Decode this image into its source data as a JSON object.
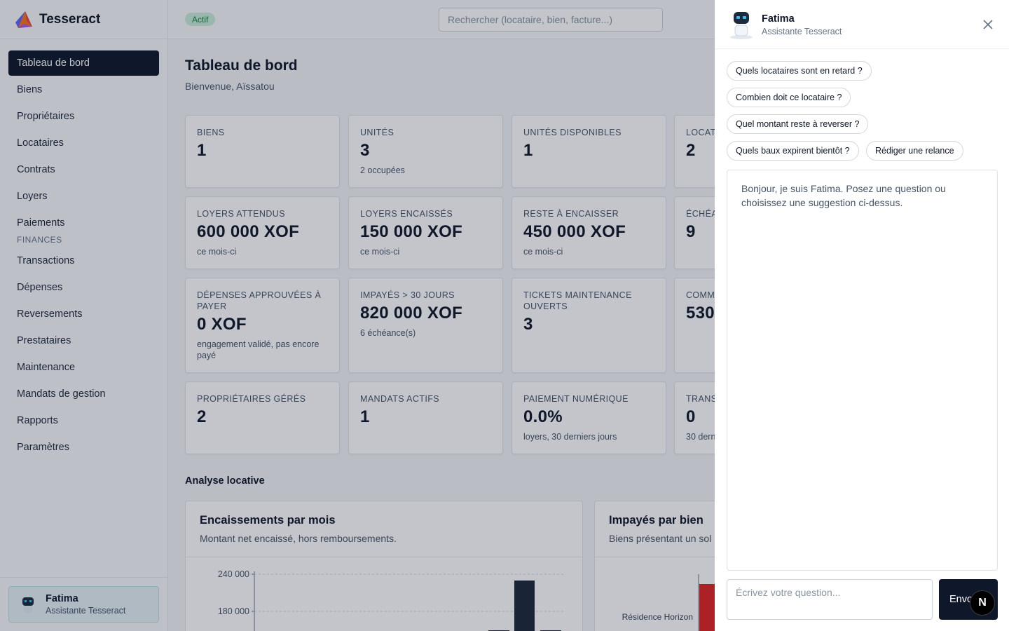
{
  "app": {
    "name": "Tesseract",
    "status_badge": "Actif"
  },
  "search": {
    "placeholder": "Rechercher (locataire, bien, facture...)"
  },
  "sidebar": {
    "items": [
      {
        "label": "Tableau de bord",
        "active": true
      },
      {
        "label": "Biens"
      },
      {
        "label": "Propriétaires"
      },
      {
        "label": "Locataires"
      },
      {
        "label": "Contrats"
      },
      {
        "label": "Loyers"
      },
      {
        "label": "Paiements"
      }
    ],
    "section_finances": "FINANCES",
    "finance_items": [
      {
        "label": "Transactions"
      },
      {
        "label": "Dépenses"
      },
      {
        "label": "Reversements"
      },
      {
        "label": "Prestataires"
      },
      {
        "label": "Maintenance"
      },
      {
        "label": "Mandats de gestion"
      },
      {
        "label": "Rapports"
      },
      {
        "label": "Paramètres"
      }
    ],
    "assistant": {
      "name": "Fatima",
      "role": "Assistante Tesseract"
    }
  },
  "page": {
    "title": "Tableau de bord",
    "subtitle": "Bienvenue, Aïssatou"
  },
  "cards": [
    {
      "label": "Biens",
      "value": "1",
      "note": ""
    },
    {
      "label": "Unités",
      "value": "3",
      "note": "2 occupées"
    },
    {
      "label": "Unités disponibles",
      "value": "1",
      "note": ""
    },
    {
      "label": "Locata",
      "value": "2",
      "note": ""
    },
    {
      "label": "Loyers attendus",
      "value": "600 000 XOF",
      "note": "ce mois-ci"
    },
    {
      "label": "Loyers encaissés",
      "value": "150 000 XOF",
      "note": "ce mois-ci"
    },
    {
      "label": "Reste à encaisser",
      "value": "450 000 XOF",
      "note": "ce mois-ci"
    },
    {
      "label": "Échéa",
      "value": "9",
      "note": ""
    },
    {
      "label": "Dépenses approuvées à payer",
      "value": "0 XOF",
      "note": "engagement validé, pas encore payé"
    },
    {
      "label": "Impayés > 30 jours",
      "value": "820 000 XOF",
      "note": "6 échéance(s)"
    },
    {
      "label": "Tickets maintenance ouverts",
      "value": "3",
      "note": ""
    },
    {
      "label": "Comm",
      "value": "530",
      "note": ""
    },
    {
      "label": "Propriétaires gérés",
      "value": "2",
      "note": ""
    },
    {
      "label": "Mandats actifs",
      "value": "1",
      "note": ""
    },
    {
      "label": "Paiement numérique",
      "value": "0.0%",
      "note": "loyers, 30 derniers jours"
    },
    {
      "label": "Trans",
      "value": "0",
      "note": "30 dern"
    }
  ],
  "analysis": {
    "section_title": "Analyse locative",
    "panel1": {
      "title": "Encaissements par mois",
      "subtitle": "Montant net encaissé, hors remboursements.",
      "y_ticks": [
        "240 000",
        "180 000"
      ]
    },
    "panel2": {
      "title": "Impayés par bien",
      "subtitle": "Biens présentant un sol",
      "category": "Résidence Horizon"
    }
  },
  "chat": {
    "assistant_name": "Fatima",
    "assistant_role": "Assistante Tesseract",
    "suggestions": [
      "Quels locataires sont en retard ?",
      "Combien doit ce locataire ?",
      "Quel montant reste à reverser ?",
      "Quels baux expirent bientôt ?",
      "Rédiger une relance"
    ],
    "welcome": "Bonjour, je suis Fatima. Posez une question ou choisissez une suggestion ci-dessus.",
    "input_placeholder": "Écrivez votre question...",
    "send_label": "Envoyer"
  },
  "colors": {
    "primary": "#0f172a",
    "badge_bg": "#c9ecd9",
    "badge_text": "#15803d",
    "accent_bar": "#1e293b",
    "impaye_bar": "#e02424"
  }
}
